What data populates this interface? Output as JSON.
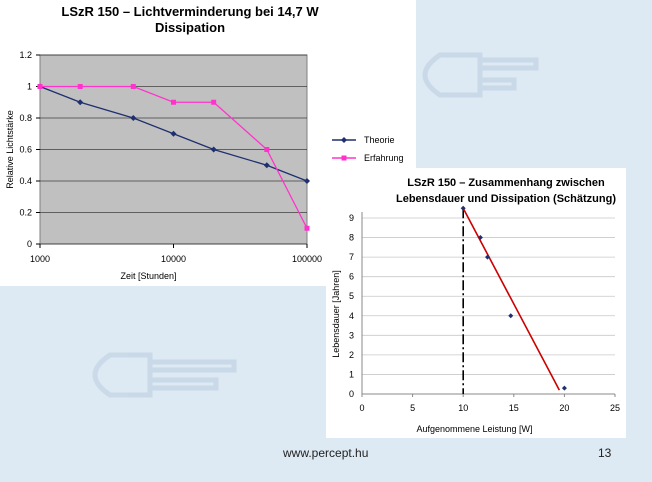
{
  "slide": {
    "url": "www.percept.hu",
    "page_number": "13",
    "colors": {
      "background": "#dde9f3",
      "plot_bg": "#c0c0c0",
      "theory": "#1f2f6f",
      "experience": "#ff33cc",
      "fit_line": "#cc0000"
    }
  },
  "chart_data": [
    {
      "type": "line",
      "title": "LSzR 150 –  Lichtverminderung bei 14,7 W Dissipation",
      "xlabel": "Zeit  [Stunden]",
      "ylabel": "Relative Lichtstärke",
      "xscale": "log",
      "xlim": [
        1000,
        100000
      ],
      "ylim": [
        0,
        1.2
      ],
      "xticks": [
        "1000",
        "10000",
        "100000"
      ],
      "yticks": [
        "0",
        "0.2",
        "0.4",
        "0.6",
        "0.8",
        "1",
        "1.2"
      ],
      "legend_position": "right",
      "grid": true,
      "series": [
        {
          "name": "Theorie",
          "x": [
            1000,
            2000,
            5000,
            10000,
            20000,
            50000,
            100000
          ],
          "y": [
            1.0,
            0.9,
            0.8,
            0.7,
            0.6,
            0.5,
            0.4
          ]
        },
        {
          "name": "Erfahrung",
          "x": [
            1000,
            2000,
            5000,
            10000,
            20000,
            50000,
            100000
          ],
          "y": [
            1.0,
            1.0,
            1.0,
            0.9,
            0.9,
            0.6,
            0.1
          ]
        }
      ]
    },
    {
      "type": "scatter",
      "title": "LSzR 150 – Zusammenhang zwischen Lebensdauer und Dissipation (Schätzung)",
      "xlabel": "Aufgenommene Leistung [W]",
      "ylabel": "Lebensdauer [Jahren]",
      "xlim": [
        0,
        25
      ],
      "ylim": [
        0,
        9
      ],
      "xticks": [
        "0",
        "5",
        "10",
        "15",
        "20",
        "25"
      ],
      "yticks": [
        "0",
        "1",
        "2",
        "3",
        "4",
        "5",
        "6",
        "7",
        "8",
        "9"
      ],
      "grid": true,
      "points": {
        "x": [
          10,
          11.7,
          12.4,
          14.7,
          20
        ],
        "y": [
          9.5,
          8,
          7,
          4,
          0.3
        ]
      },
      "fit_line": {
        "x": [
          10,
          19.5
        ],
        "y": [
          9.5,
          0.2
        ]
      },
      "vertical_line_x": 10
    }
  ]
}
